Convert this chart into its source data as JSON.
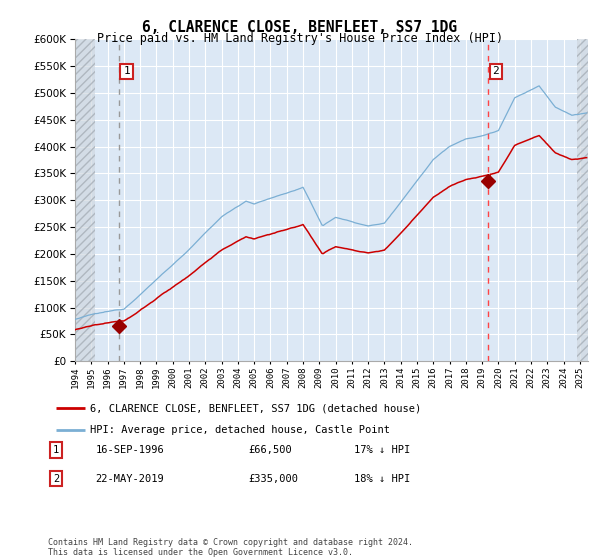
{
  "title": "6, CLARENCE CLOSE, BENFLEET, SS7 1DG",
  "subtitle": "Price paid vs. HM Land Registry's House Price Index (HPI)",
  "legend_line1": "6, CLARENCE CLOSE, BENFLEET, SS7 1DG (detached house)",
  "legend_line2": "HPI: Average price, detached house, Castle Point",
  "sale1_date": "16-SEP-1996",
  "sale1_price": 66500,
  "sale1_label": "17% ↓ HPI",
  "sale1_year": 1996.71,
  "sale2_date": "22-MAY-2019",
  "sale2_price": 335000,
  "sale2_label": "18% ↓ HPI",
  "sale2_year": 2019.38,
  "annotation1": "1",
  "annotation2": "2",
  "footer": "Contains HM Land Registry data © Crown copyright and database right 2024.\nThis data is licensed under the Open Government Licence v3.0.",
  "hpi_color": "#7bafd4",
  "price_color": "#cc0000",
  "marker_color": "#990000",
  "dashed1_color": "#999999",
  "dashed2_color": "#ff4444",
  "bg_plot": "#dce8f5",
  "grid_color": "#ffffff",
  "hatch_color": "#c8d0d8",
  "ylim": [
    0,
    600000
  ],
  "xlim_start": 1994.0,
  "xlim_end": 2025.5,
  "hatch_left_end": 1995.2,
  "hatch_right_start": 2024.8
}
